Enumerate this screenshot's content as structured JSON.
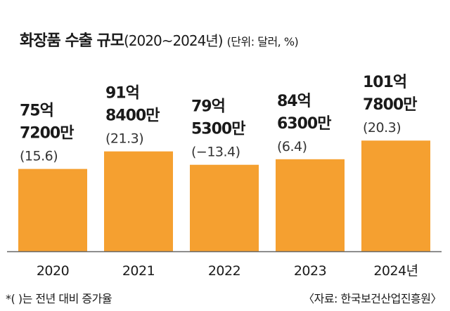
{
  "chart_data": {
    "type": "bar",
    "title": "화장품 수출 규모",
    "title_period": "(2020~2024년)",
    "unit_note": "(단위: 달러, %)",
    "categories": [
      "2020",
      "2021",
      "2022",
      "2023",
      "2024년"
    ],
    "values": [
      75.72,
      91.84,
      79.53,
      84.63,
      101.78
    ],
    "value_labels": [
      [
        "75억",
        "7200만"
      ],
      [
        "91억",
        "8400만"
      ],
      [
        "79억",
        "5300만"
      ],
      [
        "84억",
        "6300만"
      ],
      [
        "101억",
        "7800만"
      ]
    ],
    "growth_labels": [
      "(15.6)",
      "(21.3)",
      "(−13.4)",
      "(6.4)",
      "(20.3)"
    ],
    "ylim": [
      0,
      200
    ],
    "bar_color": "#f5a030",
    "axis_color": "#666666",
    "footnote": "*(   )는 전년 대비 증가율",
    "source": "〈자료: 한국보건산업진흥원〉"
  }
}
